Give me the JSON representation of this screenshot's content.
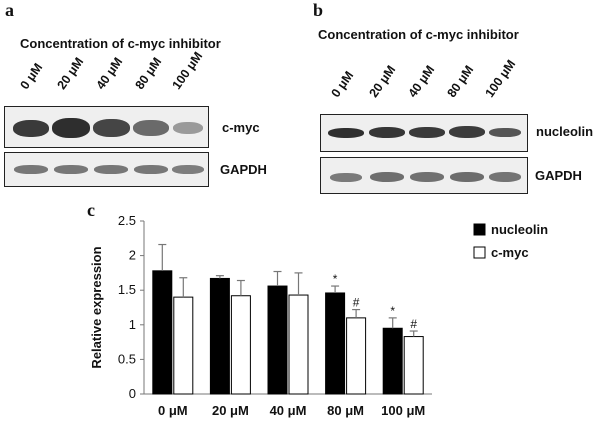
{
  "panel_a": {
    "letter": "a",
    "conc_title": "Concentration of c-myc inhibitor",
    "lanes": [
      "0 μM",
      "20 μM",
      "40 μM",
      "80 μM",
      "100 μM"
    ],
    "blot1_label": "c-myc",
    "blot2_label": "GAPDH"
  },
  "panel_b": {
    "letter": "b",
    "conc_title": "Concentration of c-myc inhibitor",
    "lanes": [
      "0 μM",
      "20 μM",
      "40 μM",
      "80 μM",
      "100 μM"
    ],
    "blot1_label": "nucleolin",
    "blot2_label": "GAPDH"
  },
  "panel_c": {
    "letter": "c"
  },
  "chart_data": {
    "type": "bar",
    "categories": [
      "0 μM",
      "20 μM",
      "40 μM",
      "80 μM",
      "100 μM"
    ],
    "series": [
      {
        "name": "nucleolin",
        "values": [
          1.78,
          1.67,
          1.56,
          1.46,
          0.95
        ],
        "errors": [
          0.38,
          0.04,
          0.21,
          0.1,
          0.15
        ],
        "color": "#000000"
      },
      {
        "name": "c-myc",
        "values": [
          1.4,
          1.42,
          1.43,
          1.1,
          0.83
        ],
        "errors": [
          0.28,
          0.22,
          0.32,
          0.12,
          0.08
        ],
        "color": "#ffffff"
      }
    ],
    "annotations": [
      {
        "series": "nucleolin",
        "category": "80 μM",
        "text": "*"
      },
      {
        "series": "c-myc",
        "category": "80 μM",
        "text": "#"
      },
      {
        "series": "nucleolin",
        "category": "100 μM",
        "text": "*"
      },
      {
        "series": "c-myc",
        "category": "100 μM",
        "text": "#"
      }
    ],
    "ylabel": "Relative expression",
    "xlabel": "",
    "ylim": [
      0,
      2.5
    ],
    "yticks": [
      "0",
      "0.5",
      "1",
      "1.5",
      "2",
      "2.5"
    ],
    "grid": false,
    "legend_position": "top-right"
  }
}
